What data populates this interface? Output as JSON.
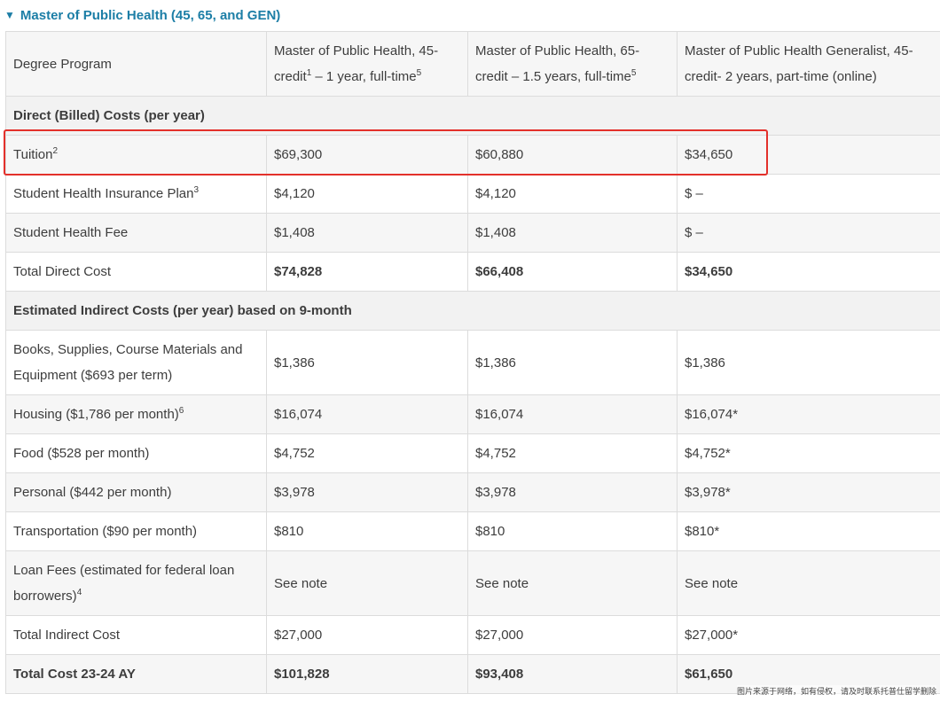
{
  "accordion": {
    "arrow": "▼",
    "title": "Master of Public Health (45, 65, and GEN)"
  },
  "table": {
    "header": {
      "label": "Degree Program",
      "col1": {
        "text": "Master of Public Health, 45-credit",
        "sup1": "1",
        "text2": " – 1 year, full-time",
        "sup2": "5"
      },
      "col2": {
        "text": "Master of Public Health, 65-credit – 1.5 years, full-time",
        "sup": "5"
      },
      "col3": {
        "text": "Master of Public Health Generalist, 45-credit- 2 years, part-time (online)"
      }
    },
    "direct_section": "Direct (Billed) Costs (per year)",
    "tuition": {
      "label": "Tuition",
      "sup": "2",
      "v1": "$69,300",
      "v2": "$60,880",
      "v3": "$34,650"
    },
    "insurance": {
      "label": "Student Health Insurance Plan",
      "sup": "3",
      "v1": "$4,120",
      "v2": "$4,120",
      "v3": "$ –"
    },
    "health_fee": {
      "label": "Student Health Fee",
      "v1": "$1,408",
      "v2": "$1,408",
      "v3": "$ –"
    },
    "total_direct": {
      "label": "Total Direct Cost",
      "v1": "$74,828",
      "v2": "$66,408",
      "v3": "$34,650"
    },
    "indirect_section": "Estimated Indirect Costs (per year) based on 9-month",
    "books": {
      "label": "Books, Supplies, Course Materials and Equipment ($693 per term)",
      "v1": "$1,386",
      "v2": "$1,386",
      "v3": "$1,386"
    },
    "housing": {
      "label": "Housing ($1,786 per month)",
      "sup": "6",
      "v1": "$16,074",
      "v2": "$16,074",
      "v3": "$16,074*"
    },
    "food": {
      "label": "Food ($528 per month)",
      "v1": "$4,752",
      "v2": "$4,752",
      "v3": "$4,752*"
    },
    "personal": {
      "label": "Personal ($442 per month)",
      "v1": "$3,978",
      "v2": "$3,978",
      "v3": "$3,978*"
    },
    "transport": {
      "label": "Transportation ($90 per month)",
      "v1": "$810",
      "v2": "$810",
      "v3": "$810*"
    },
    "loan_fees": {
      "label": "Loan Fees (estimated for federal loan borrowers)",
      "sup": "4",
      "v1": "See note",
      "v2": "See note",
      "v3": "See note"
    },
    "total_indirect": {
      "label": "Total Indirect Cost",
      "v1": "$27,000",
      "v2": "$27,000",
      "v3": "$27,000*"
    },
    "total_cost": {
      "label": "Total Cost 23-24 AY",
      "v1": "$101,828",
      "v2": "$93,408",
      "v3": "$61,650"
    }
  },
  "watermark": "图片来源于网络，如有侵权，请及时联系托普仕留学删除",
  "colors": {
    "accent": "#1c7ea6",
    "highlight": "#e3302b",
    "border": "#dcdcdc"
  }
}
